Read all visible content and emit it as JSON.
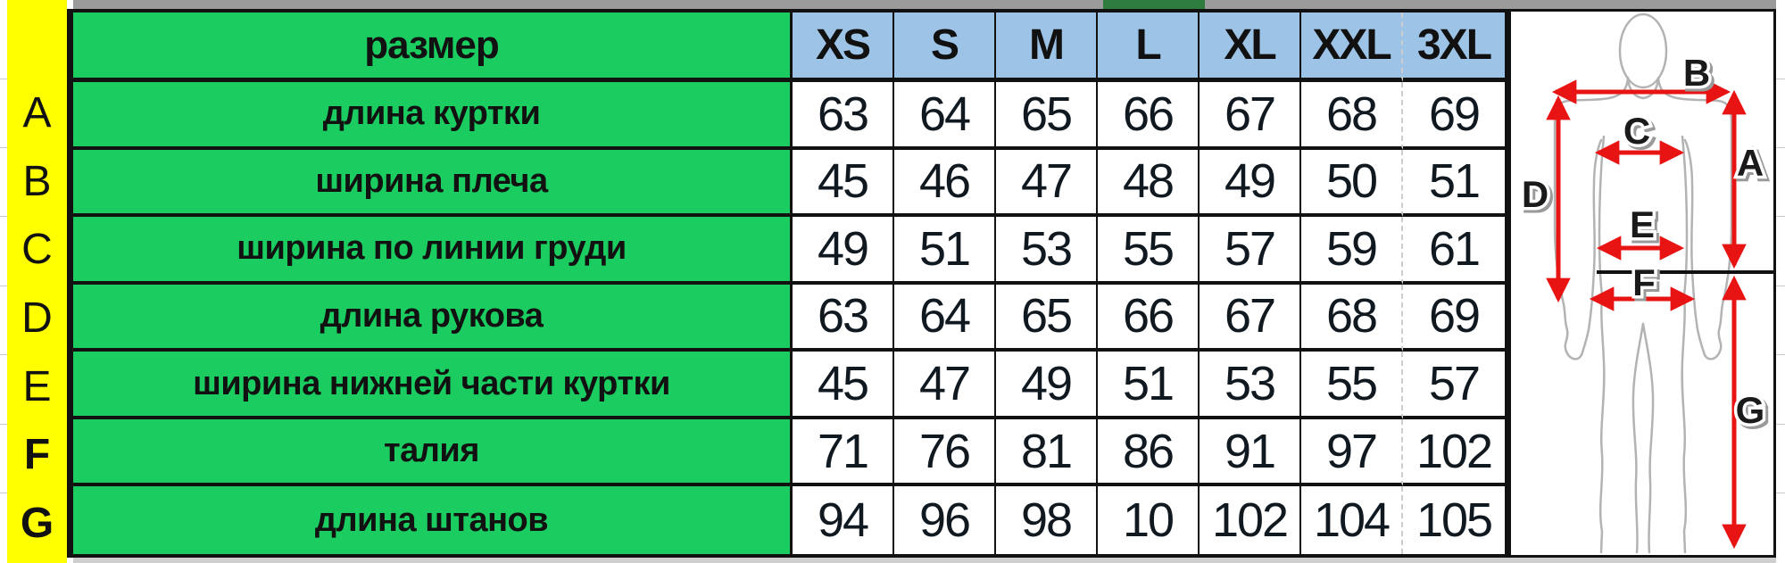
{
  "table": {
    "corner_header": "размер",
    "size_headers": [
      "XS",
      "S",
      "M",
      "L",
      "XL",
      "XXL",
      "3XL"
    ],
    "rows": [
      {
        "letter": "A",
        "bold_letter": false,
        "label": "длина куртки",
        "values": [
          "63",
          "64",
          "65",
          "66",
          "67",
          "68",
          "69"
        ]
      },
      {
        "letter": "B",
        "bold_letter": false,
        "label": "ширина плеча",
        "values": [
          "45",
          "46",
          "47",
          "48",
          "49",
          "50",
          "51"
        ]
      },
      {
        "letter": "C",
        "bold_letter": false,
        "label": "ширина по линии груди",
        "values": [
          "49",
          "51",
          "53",
          "55",
          "57",
          "59",
          "61"
        ]
      },
      {
        "letter": "D",
        "bold_letter": false,
        "label": "длина рукова",
        "values": [
          "63",
          "64",
          "65",
          "66",
          "67",
          "68",
          "69"
        ]
      },
      {
        "letter": "E",
        "bold_letter": false,
        "label": "ширина нижней части куртки",
        "values": [
          "45",
          "47",
          "49",
          "51",
          "53",
          "55",
          "57"
        ]
      },
      {
        "letter": "F",
        "bold_letter": true,
        "label": "талия",
        "values": [
          "71",
          "76",
          "81",
          "86",
          "91",
          "97",
          "102"
        ]
      },
      {
        "letter": "G",
        "bold_letter": true,
        "label": "длина штанов",
        "values": [
          "94",
          "96",
          "98",
          "10",
          "102",
          "104",
          "105"
        ]
      }
    ]
  },
  "diagram": {
    "labels": [
      "A",
      "B",
      "C",
      "D",
      "E",
      "F",
      "G"
    ]
  },
  "colors": {
    "cell-green": "#1bcd61",
    "header-blue": "#9dc3e6",
    "row-letter-yellow": "#ffff00",
    "page-break-dash": "#cdcdcd",
    "top-strip-gray": "#9b9b9b",
    "top-strip-green": "#2e7d3e",
    "arrow-red": "#e81414",
    "figure-outline-gray": "#b3b3b3",
    "border-black": "#111111",
    "number-ink": "#101820"
  }
}
